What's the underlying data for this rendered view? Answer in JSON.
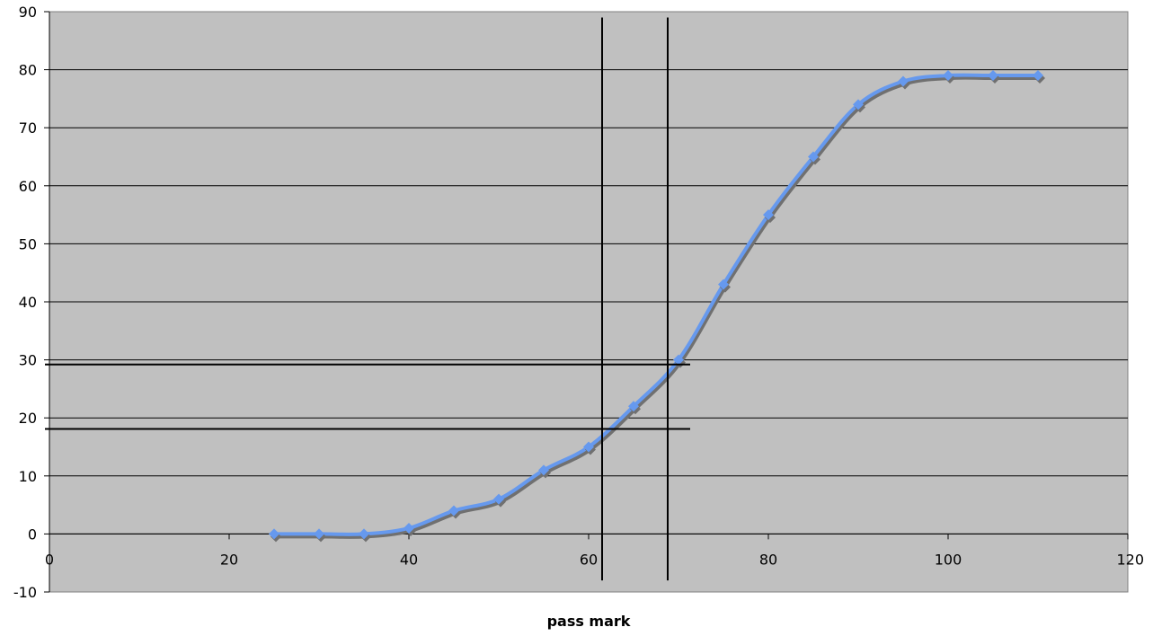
{
  "chart_data": {
    "type": "line",
    "title": "",
    "xlabel": "pass mark",
    "ylabel": "",
    "xlim": [
      0,
      120
    ],
    "ylim": [
      -10,
      90
    ],
    "xticks": [
      0,
      20,
      40,
      60,
      80,
      100,
      120
    ],
    "yticks": [
      -10,
      0,
      10,
      20,
      30,
      40,
      50,
      60,
      70,
      80,
      90
    ],
    "grid": "horizontal",
    "legend": "none",
    "plot_background": "#c0c0c0",
    "series": [
      {
        "color": "#6699ee",
        "x": [
          25,
          30,
          35,
          40,
          45,
          50,
          55,
          60,
          65,
          70,
          75,
          80,
          85,
          90,
          95,
          100,
          105,
          110
        ],
        "y": [
          0,
          0,
          0,
          1,
          4,
          6,
          11,
          15,
          22,
          30,
          43,
          55,
          65,
          74,
          78,
          79,
          79,
          79
        ]
      }
    ],
    "reference_lines": {
      "vertical": [
        {
          "x": 61.5,
          "y_from": -8,
          "y_to": 89
        },
        {
          "x": 68.8,
          "y_from": -8,
          "y_to": 89
        }
      ],
      "horizontal": [
        {
          "y": 29.2,
          "x_from": -0.5,
          "x_to": 71.3
        },
        {
          "y": 18.1,
          "x_from": -0.5,
          "x_to": 71.3
        }
      ]
    }
  }
}
